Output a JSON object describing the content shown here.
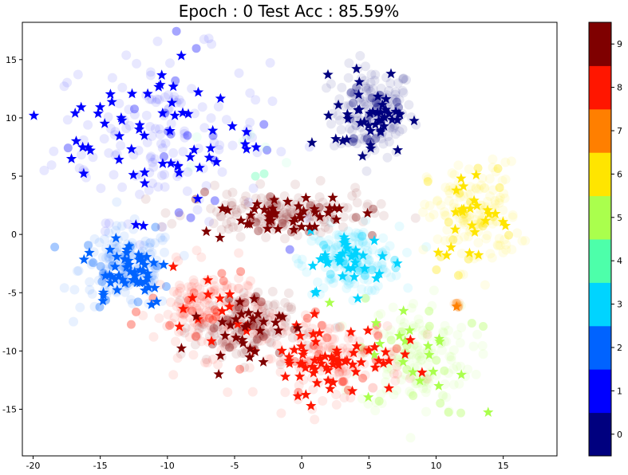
{
  "chart_data": {
    "type": "scatter",
    "title": "Epoch : 0  Test Acc : 85.59%",
    "xlabel": "",
    "ylabel": "",
    "xlim": [
      -20.8,
      19.0
    ],
    "ylim": [
      -19.0,
      18.2
    ],
    "xticks": [
      -20,
      -15,
      -10,
      -5,
      0,
      5,
      10,
      15
    ],
    "yticks": [
      -15,
      -10,
      -5,
      0,
      5,
      10,
      15
    ],
    "grid": false,
    "legend": "colorbar-right",
    "colorbar": {
      "ticks": [
        0,
        1,
        2,
        3,
        4,
        5,
        6,
        7,
        8,
        9
      ],
      "colors": [
        "#00007f",
        "#0000ff",
        "#0063ff",
        "#00d4ff",
        "#4dffaa",
        "#aaff4d",
        "#ffe500",
        "#ff7f00",
        "#ff1600",
        "#7f0000"
      ]
    },
    "markers": {
      "train": "circle (faded)",
      "test": "star"
    },
    "clusters": [
      {
        "label": 0,
        "color": "#00007f",
        "center": [
          5.3,
          10.5
        ],
        "spread": [
          3.6,
          4.6
        ],
        "stars": 45
      },
      {
        "label": 1,
        "color": "#0000ff",
        "center": [
          -10.5,
          8.5
        ],
        "spread": [
          9.5,
          8.5
        ],
        "stars": 60
      },
      {
        "label": 2,
        "color": "#0063ff",
        "center": [
          -13.0,
          -3.0
        ],
        "spread": [
          4.2,
          4.2
        ],
        "stars": 50
      },
      {
        "label": 3,
        "color": "#00d4ff",
        "center": [
          3.7,
          -2.2
        ],
        "spread": [
          4.2,
          3.4
        ],
        "stars": 35
      },
      {
        "label": 4,
        "color": "#4dffaa",
        "center": [
          -2.5,
          7.0
        ],
        "spread": [
          8.0,
          3.0
        ],
        "stars": 0
      },
      {
        "label": 5,
        "color": "#aaff4d",
        "center": [
          8.5,
          -10.5
        ],
        "spread": [
          5.0,
          5.8
        ],
        "stars": 20
      },
      {
        "label": 6,
        "color": "#ffe500",
        "center": [
          12.8,
          1.6
        ],
        "spread": [
          4.0,
          5.4
        ],
        "stars": 25
      },
      {
        "label": 7,
        "color": "#ff7f00",
        "center": [
          11.6,
          -6.0
        ],
        "spread": [
          0.3,
          0.3
        ],
        "stars": 1
      },
      {
        "label": 8,
        "color": "#ff1600",
        "center": [
          2.2,
          -10.6
        ],
        "spread": [
          6.5,
          4.0
        ],
        "stars": 65
      },
      {
        "label": 8,
        "color": "#ff1600",
        "center": [
          -7.0,
          -6.5
        ],
        "spread": [
          4.8,
          4.5
        ],
        "stars": 15
      },
      {
        "label": 9,
        "color": "#7f0000",
        "center": [
          -1.5,
          1.8
        ],
        "spread": [
          8.0,
          2.3
        ],
        "stars": 45
      },
      {
        "label": 9,
        "color": "#7f0000",
        "center": [
          -4.5,
          -8.0
        ],
        "spread": [
          4.2,
          3.5
        ],
        "stars": 30
      }
    ]
  }
}
